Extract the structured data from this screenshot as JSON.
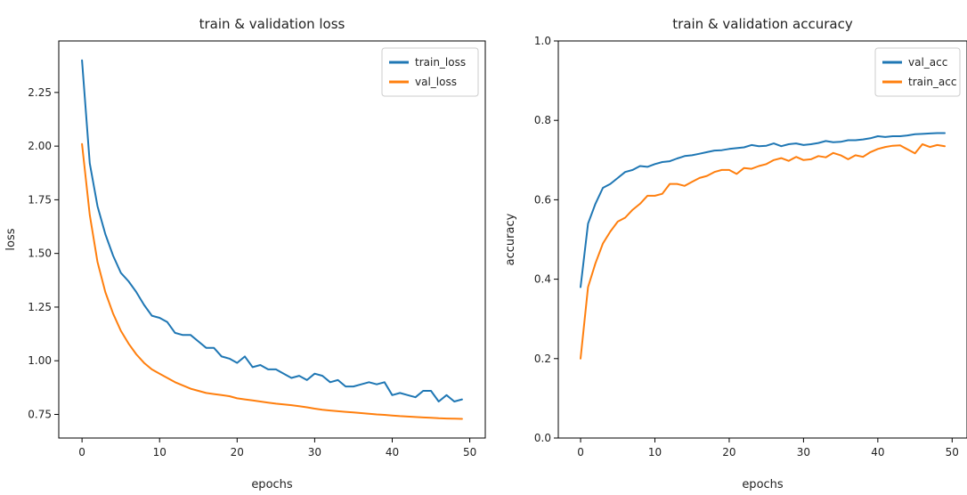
{
  "chart_data": [
    {
      "type": "line",
      "title": "train & validation loss",
      "xlabel": "epochs",
      "ylabel": "loss",
      "xlim": [
        -3,
        52
      ],
      "ylim": [
        0.64,
        2.49
      ],
      "xticks": [
        0,
        10,
        20,
        30,
        40,
        50
      ],
      "xtick_labels": [
        "0",
        "10",
        "20",
        "30",
        "40",
        "50"
      ],
      "yticks": [
        0.75,
        1.0,
        1.25,
        1.5,
        1.75,
        2.0,
        2.25
      ],
      "ytick_labels": [
        "0.75",
        "1.00",
        "1.25",
        "1.50",
        "1.75",
        "2.00",
        "2.25"
      ],
      "legend_position": "top-right",
      "grid": false,
      "x": [
        0,
        1,
        2,
        3,
        4,
        5,
        6,
        7,
        8,
        9,
        10,
        11,
        12,
        13,
        14,
        15,
        16,
        17,
        18,
        19,
        20,
        21,
        22,
        23,
        24,
        25,
        26,
        27,
        28,
        29,
        30,
        31,
        32,
        33,
        34,
        35,
        36,
        37,
        38,
        39,
        40,
        41,
        42,
        43,
        44,
        45,
        46,
        47,
        48,
        49
      ],
      "series": [
        {
          "name": "train_loss",
          "color": "#1f77b4",
          "values": [
            2.4,
            1.92,
            1.72,
            1.59,
            1.49,
            1.41,
            1.37,
            1.32,
            1.26,
            1.21,
            1.2,
            1.18,
            1.13,
            1.12,
            1.12,
            1.09,
            1.06,
            1.06,
            1.02,
            1.01,
            0.99,
            1.02,
            0.97,
            0.98,
            0.96,
            0.96,
            0.94,
            0.92,
            0.93,
            0.91,
            0.94,
            0.93,
            0.9,
            0.91,
            0.88,
            0.88,
            0.89,
            0.9,
            0.89,
            0.9,
            0.84,
            0.85,
            0.84,
            0.83,
            0.86,
            0.86,
            0.81,
            0.84,
            0.81,
            0.82
          ]
        },
        {
          "name": "val_loss",
          "color": "#ff7f0e",
          "values": [
            2.01,
            1.68,
            1.46,
            1.32,
            1.22,
            1.14,
            1.08,
            1.03,
            0.99,
            0.96,
            0.94,
            0.92,
            0.9,
            0.885,
            0.87,
            0.86,
            0.85,
            0.845,
            0.84,
            0.835,
            0.825,
            0.82,
            0.815,
            0.81,
            0.805,
            0.8,
            0.797,
            0.793,
            0.788,
            0.783,
            0.777,
            0.772,
            0.768,
            0.765,
            0.762,
            0.759,
            0.756,
            0.753,
            0.75,
            0.748,
            0.745,
            0.742,
            0.74,
            0.738,
            0.736,
            0.734,
            0.732,
            0.731,
            0.73,
            0.729
          ]
        }
      ]
    },
    {
      "type": "line",
      "title": "train & validation accuracy",
      "xlabel": "epochs",
      "ylabel": "accuracy",
      "xlim": [
        -3,
        52
      ],
      "ylim": [
        0,
        1.0
      ],
      "xticks": [
        0,
        10,
        20,
        30,
        40,
        50
      ],
      "xtick_labels": [
        "0",
        "10",
        "20",
        "30",
        "40",
        "50"
      ],
      "yticks": [
        0,
        0.2,
        0.4,
        0.6,
        0.8,
        1.0
      ],
      "ytick_labels": [
        "0.0",
        "0.2",
        "0.4",
        "0.6",
        "0.8",
        "1.0"
      ],
      "legend_position": "top-right",
      "grid": false,
      "x": [
        0,
        1,
        2,
        3,
        4,
        5,
        6,
        7,
        8,
        9,
        10,
        11,
        12,
        13,
        14,
        15,
        16,
        17,
        18,
        19,
        20,
        21,
        22,
        23,
        24,
        25,
        26,
        27,
        28,
        29,
        30,
        31,
        32,
        33,
        34,
        35,
        36,
        37,
        38,
        39,
        40,
        41,
        42,
        43,
        44,
        45,
        46,
        47,
        48,
        49
      ],
      "series": [
        {
          "name": "val_acc",
          "color": "#1f77b4",
          "values": [
            0.38,
            0.54,
            0.59,
            0.63,
            0.64,
            0.655,
            0.67,
            0.675,
            0.685,
            0.683,
            0.69,
            0.695,
            0.697,
            0.704,
            0.71,
            0.712,
            0.716,
            0.72,
            0.724,
            0.725,
            0.728,
            0.73,
            0.732,
            0.738,
            0.735,
            0.736,
            0.742,
            0.735,
            0.74,
            0.742,
            0.738,
            0.74,
            0.743,
            0.748,
            0.745,
            0.746,
            0.75,
            0.75,
            0.752,
            0.755,
            0.76,
            0.758,
            0.76,
            0.76,
            0.762,
            0.765,
            0.766,
            0.767,
            0.768,
            0.768
          ]
        },
        {
          "name": "train_acc",
          "color": "#ff7f0e",
          "values": [
            0.2,
            0.38,
            0.44,
            0.49,
            0.52,
            0.545,
            0.555,
            0.575,
            0.59,
            0.61,
            0.61,
            0.615,
            0.64,
            0.64,
            0.635,
            0.645,
            0.655,
            0.66,
            0.67,
            0.675,
            0.675,
            0.665,
            0.68,
            0.678,
            0.685,
            0.69,
            0.7,
            0.705,
            0.698,
            0.708,
            0.7,
            0.702,
            0.71,
            0.707,
            0.718,
            0.712,
            0.702,
            0.712,
            0.708,
            0.72,
            0.728,
            0.733,
            0.736,
            0.737,
            0.727,
            0.717,
            0.74,
            0.733,
            0.738,
            0.735
          ]
        }
      ]
    }
  ]
}
